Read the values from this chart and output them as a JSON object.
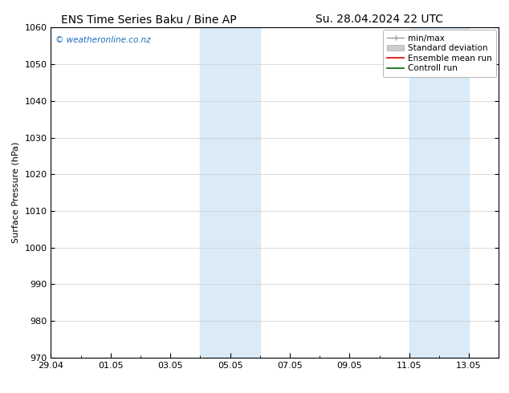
{
  "title_left": "ENS Time Series Baku / Bine AP",
  "title_right": "Su. 28.04.2024 22 UTC",
  "ylabel": "Surface Pressure (hPa)",
  "ylim": [
    970,
    1060
  ],
  "yticks": [
    970,
    980,
    990,
    1000,
    1010,
    1020,
    1030,
    1040,
    1050,
    1060
  ],
  "xtick_labels": [
    "29.04",
    "01.05",
    "03.05",
    "05.05",
    "07.05",
    "09.05",
    "11.05",
    "13.05"
  ],
  "xtick_positions": [
    0,
    2,
    4,
    6,
    8,
    10,
    12,
    14
  ],
  "xlim": [
    0,
    15
  ],
  "shaded_regions": [
    {
      "start": 5.0,
      "end": 7.0
    },
    {
      "start": 12.0,
      "end": 14.0
    }
  ],
  "shaded_color": "#daeaf7",
  "watermark_text": "© weatheronline.co.nz",
  "watermark_color": "#1a6dc0",
  "bg_color": "#ffffff",
  "grid_color": "#cccccc",
  "tick_color": "#000000",
  "spine_color": "#000000",
  "title_fontsize": 10,
  "label_fontsize": 8,
  "tick_fontsize": 8,
  "legend_fontsize": 7.5
}
